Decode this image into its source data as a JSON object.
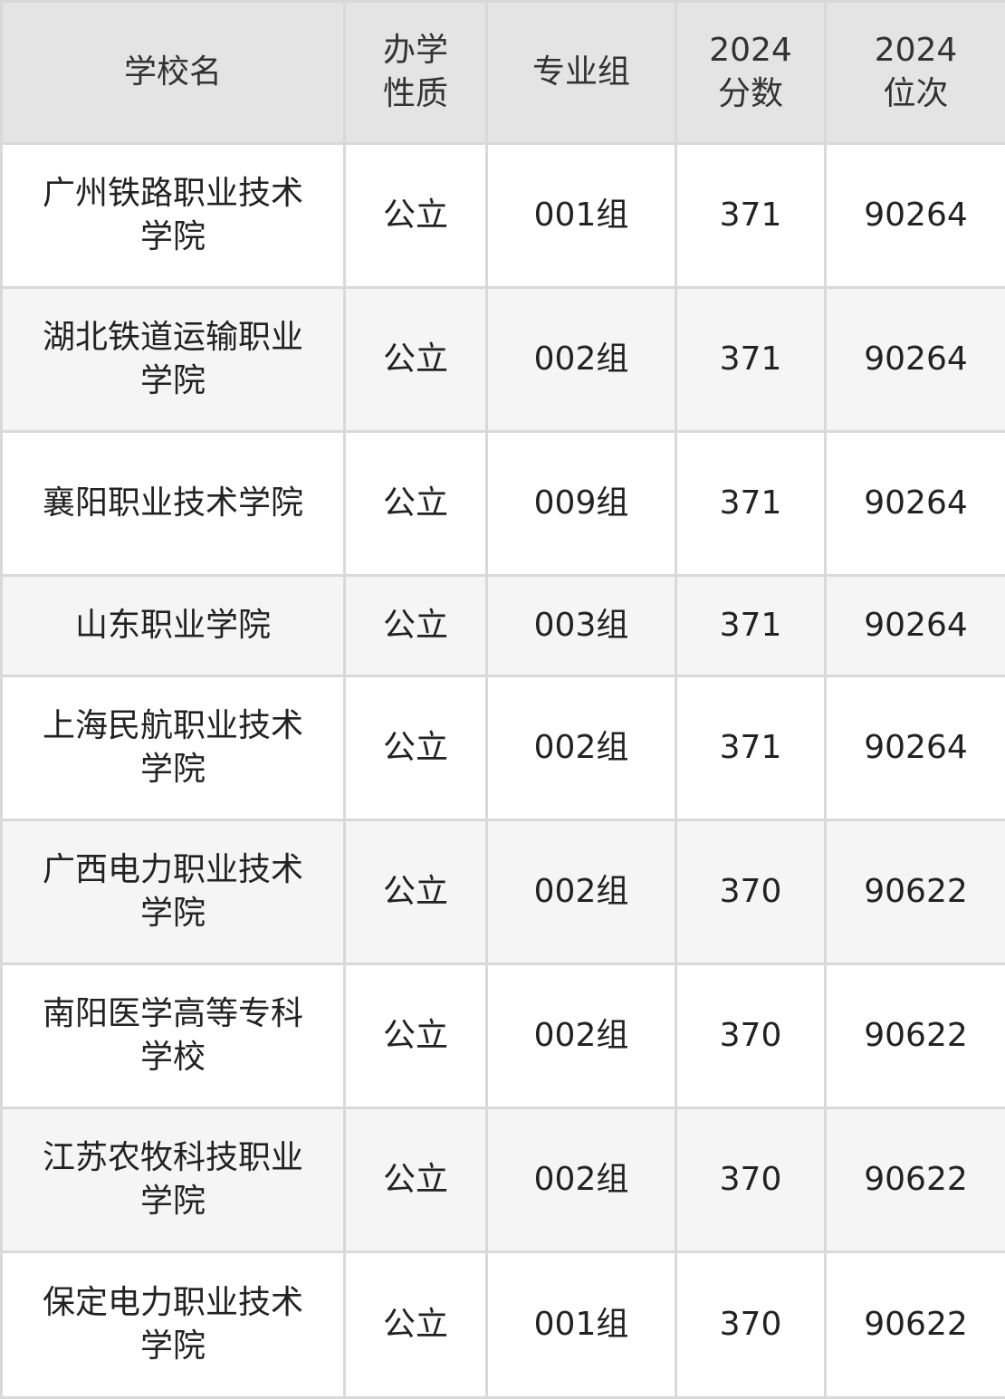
{
  "headers": [
    "学校名",
    "办学性质",
    "专业组",
    "2024分数",
    "2024位次"
  ],
  "header_lines": [
    [
      "学校名"
    ],
    [
      "办学",
      "性质"
    ],
    [
      "专业组"
    ],
    [
      "2024",
      "分数"
    ],
    [
      "2024",
      "位次"
    ]
  ],
  "rows": [
    {
      "school": "广州铁路职业技术学院",
      "type": "公立",
      "group": "001组",
      "score": "371",
      "rank": "90264"
    },
    {
      "school": "湖北铁道运输职业学院",
      "type": "公立",
      "group": "002组",
      "score": "371",
      "rank": "90264"
    },
    {
      "school": "襄阳职业技术学院",
      "type": "公立",
      "group": "009组",
      "score": "371",
      "rank": "90264"
    },
    {
      "school": "山东职业学院",
      "type": "公立",
      "group": "003组",
      "score": "371",
      "rank": "90264"
    },
    {
      "school": "上海民航职业技术学院",
      "type": "公立",
      "group": "002组",
      "score": "371",
      "rank": "90264"
    },
    {
      "school": "广西电力职业技术学院",
      "type": "公立",
      "group": "002组",
      "score": "370",
      "rank": "90622"
    },
    {
      "school": "南阳医学高等专科学校",
      "type": "公立",
      "group": "002组",
      "score": "370",
      "rank": "90622"
    },
    {
      "school": "江苏农牧科技职业学院",
      "type": "公立",
      "group": "002组",
      "score": "370",
      "rank": "90622"
    },
    {
      "school": "保定电力职业技术学院",
      "type": "公立",
      "group": "001组",
      "score": "370",
      "rank": "90622"
    }
  ]
}
